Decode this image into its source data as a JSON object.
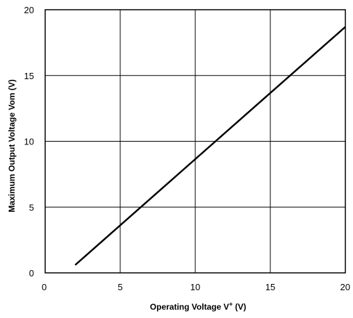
{
  "chart_data": {
    "type": "line",
    "title": "",
    "xlabel_main": "Operating Voltage   V",
    "xlabel_sup": "+",
    "xlabel_unit": " (V)",
    "ylabel": "Maximum Output Voltage Vom (V)",
    "xlim": [
      0,
      20
    ],
    "ylim": [
      0,
      20
    ],
    "xticks": [
      0,
      5,
      10,
      15,
      20
    ],
    "yticks": [
      0,
      5,
      10,
      15,
      20
    ],
    "grid": true,
    "series": [
      {
        "x": [
          2,
          20
        ],
        "y": [
          0.6,
          18.7
        ]
      }
    ]
  }
}
